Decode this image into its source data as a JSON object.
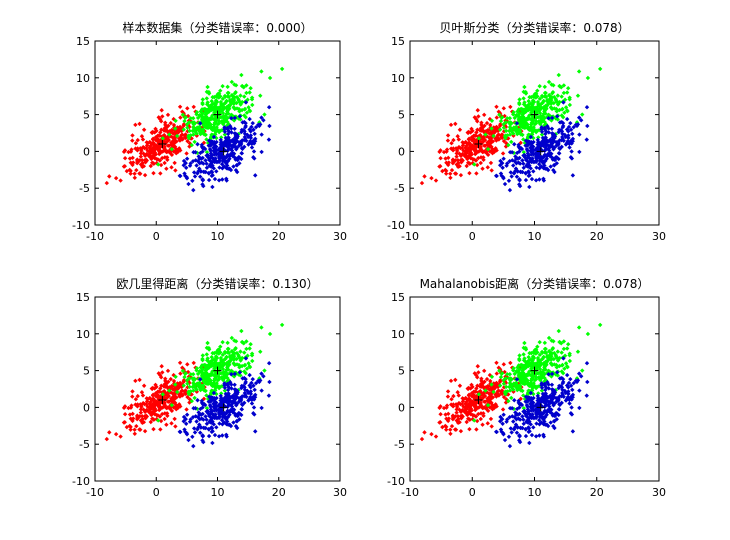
{
  "chart_data": [
    {
      "type": "scatter",
      "title": "样本数据集（分类错误率：0.000）",
      "xlim": [
        -10,
        30
      ],
      "ylim": [
        -10,
        15
      ],
      "xticks": [
        "-10",
        "0",
        "10",
        "20",
        "30"
      ],
      "yticks": [
        "-10",
        "-5",
        "0",
        "5",
        "10",
        "15"
      ],
      "grid": false,
      "means": [
        [
          1,
          1
        ],
        [
          10,
          5
        ],
        [
          11,
          0
        ]
      ],
      "series": [
        {
          "color": "#ff0000",
          "center": [
            1,
            1
          ],
          "spread": [
            3.0,
            2.0
          ],
          "corr": 0.6,
          "count": 333
        },
        {
          "color": "#00ff00",
          "center": [
            10,
            5
          ],
          "spread": [
            3.0,
            2.0
          ],
          "corr": 0.6,
          "count": 333
        },
        {
          "color": "#0000cc",
          "center": [
            11,
            0
          ],
          "spread": [
            3.0,
            2.0
          ],
          "corr": 0.6,
          "count": 334
        }
      ]
    },
    {
      "type": "scatter",
      "title": "贝叶斯分类（分类错误率：0.078）",
      "xlim": [
        -10,
        30
      ],
      "ylim": [
        -10,
        15
      ],
      "xticks": [
        "-10",
        "0",
        "10",
        "20",
        "30"
      ],
      "yticks": [
        "-10",
        "-5",
        "0",
        "5",
        "10",
        "15"
      ],
      "grid": false,
      "means": [
        [
          1,
          1
        ],
        [
          10,
          5
        ],
        [
          11,
          0
        ]
      ],
      "series": [
        {
          "color": "#ff0000",
          "center": [
            1,
            1
          ],
          "spread": [
            3.0,
            2.0
          ],
          "corr": 0.6,
          "count": 333
        },
        {
          "color": "#00ff00",
          "center": [
            10,
            5
          ],
          "spread": [
            3.0,
            2.0
          ],
          "corr": 0.6,
          "count": 333
        },
        {
          "color": "#0000cc",
          "center": [
            11,
            0
          ],
          "spread": [
            3.0,
            2.0
          ],
          "corr": 0.6,
          "count": 334
        }
      ]
    },
    {
      "type": "scatter",
      "title": "欧几里得距离（分类错误率：0.130）",
      "xlim": [
        -10,
        30
      ],
      "ylim": [
        -10,
        15
      ],
      "xticks": [
        "-10",
        "0",
        "10",
        "20",
        "30"
      ],
      "yticks": [
        "-10",
        "-5",
        "0",
        "5",
        "10",
        "15"
      ],
      "grid": false,
      "means": [
        [
          1,
          1
        ],
        [
          10,
          5
        ],
        [
          11,
          0
        ]
      ],
      "series": [
        {
          "color": "#ff0000",
          "center": [
            1,
            1
          ],
          "spread": [
            3.0,
            2.0
          ],
          "corr": 0.6,
          "count": 333
        },
        {
          "color": "#00ff00",
          "center": [
            10,
            5
          ],
          "spread": [
            3.0,
            2.0
          ],
          "corr": 0.6,
          "count": 333
        },
        {
          "color": "#0000cc",
          "center": [
            11,
            0
          ],
          "spread": [
            3.0,
            2.0
          ],
          "corr": 0.6,
          "count": 334
        }
      ]
    },
    {
      "type": "scatter",
      "title": "Mahalanobis距离（分类错误率：0.078）",
      "xlim": [
        -10,
        30
      ],
      "ylim": [
        -10,
        15
      ],
      "xticks": [
        "-10",
        "0",
        "10",
        "20",
        "30"
      ],
      "yticks": [
        "-10",
        "-5",
        "0",
        "5",
        "10",
        "15"
      ],
      "grid": false,
      "means": [
        [
          1,
          1
        ],
        [
          10,
          5
        ],
        [
          11,
          0
        ]
      ],
      "series": [
        {
          "color": "#ff0000",
          "center": [
            1,
            1
          ],
          "spread": [
            3.0,
            2.0
          ],
          "corr": 0.6,
          "count": 333
        },
        {
          "color": "#00ff00",
          "center": [
            10,
            5
          ],
          "spread": [
            3.0,
            2.0
          ],
          "corr": 0.6,
          "count": 333
        },
        {
          "color": "#0000cc",
          "center": [
            11,
            0
          ],
          "spread": [
            3.0,
            2.0
          ],
          "corr": 0.6,
          "count": 334
        }
      ]
    }
  ]
}
